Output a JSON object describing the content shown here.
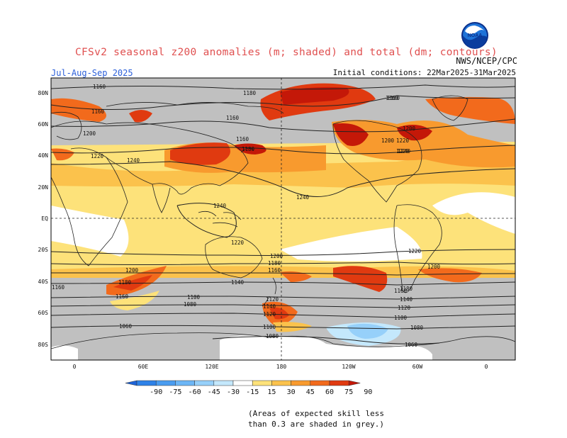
{
  "title": "CFSv2 seasonal z200 anomalies (m; shaded) and total (dm; contours)",
  "agency": "NWS/NCEP/CPC",
  "logo_text": "NOAA",
  "season": "Jul-Aug-Sep 2025",
  "initial_conditions": "Initial conditions: 22Mar2025-31Mar2025",
  "note": [
    "(Areas of expected skill less",
    "than 0.3 are shaded in grey.)"
  ],
  "lat_labels": [
    "80N",
    "60N",
    "40N",
    "20N",
    "EQ",
    "20S",
    "40S",
    "60S",
    "80S"
  ],
  "lon_labels": [
    "0",
    "60E",
    "120E",
    "180",
    "120W",
    "60W",
    "0"
  ],
  "colorbar": {
    "levels": [
      "-90",
      "-75",
      "-60",
      "-45",
      "-30",
      "-15",
      "15",
      "30",
      "45",
      "60",
      "75",
      "90"
    ],
    "colors": [
      "#1e64d8",
      "#2e82e8",
      "#4a9cf0",
      "#6cb6f6",
      "#96d0fa",
      "#c4e8fc",
      "#ffffff",
      "#fde27a",
      "#fbc24c",
      "#f89a2e",
      "#f26a1c",
      "#e03a10",
      "#c41808"
    ]
  },
  "contour_labels": [
    "1160",
    "1160",
    "1180",
    "1160",
    "1200",
    "1220",
    "1240",
    "1160",
    "1180",
    "1180",
    "1200",
    "1220",
    "1240",
    "1240",
    "1240",
    "1220",
    "1200",
    "1180",
    "1160",
    "1140",
    "1120",
    "1100",
    "1080",
    "1060",
    "1160",
    "1220",
    "1200",
    "1180",
    "1160",
    "1140",
    "1120",
    "1100",
    "1080",
    "1200",
    "1180",
    "1160",
    "1140",
    "1120",
    "1100",
    "1080",
    "1060",
    "1160",
    "1200",
    "1220"
  ],
  "colors": {
    "title": "#e05050",
    "season": "#2b5fd9",
    "grey_low_skill": "#c0c0c0",
    "background": "#ffffff"
  }
}
